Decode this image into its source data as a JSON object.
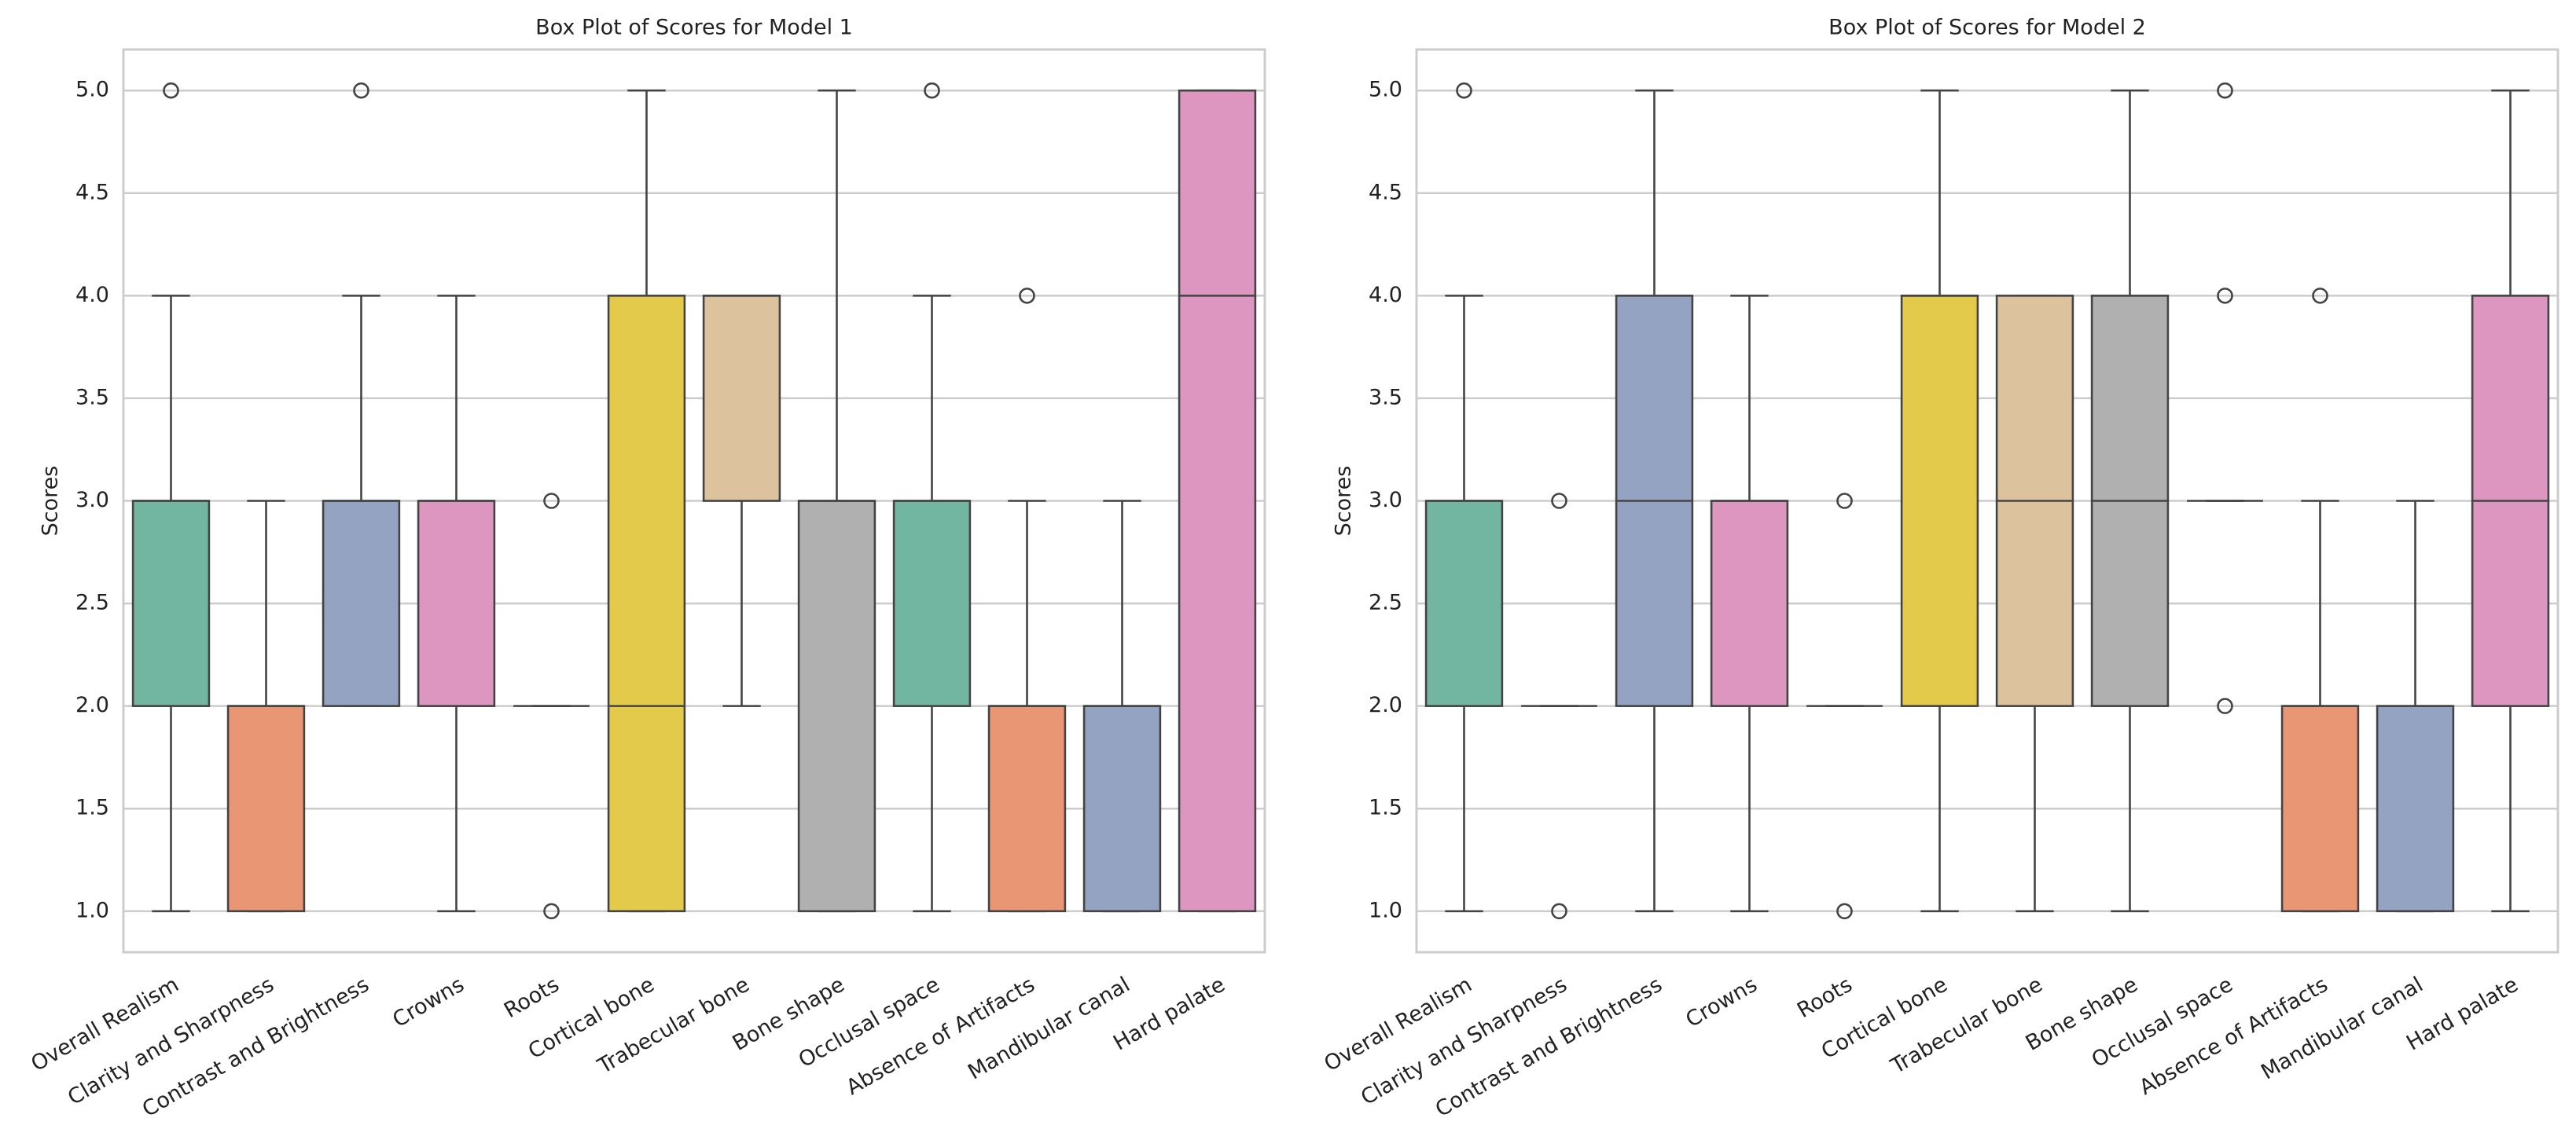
{
  "chart_data": [
    {
      "type": "box",
      "title": "Box Plot of Scores for Model 1",
      "y_label": "Scores",
      "categories": [
        "Overall Realism",
        "Clarity and Sharpness",
        "Contrast and Brightness",
        "Crowns",
        "Roots",
        "Cortical bone",
        "Trabecular bone",
        "Bone shape",
        "Occlusal space",
        "Absence of Artifacts",
        "Mandibular canal",
        "Hard palate"
      ],
      "colors": [
        "#72b6a1",
        "#e99675",
        "#95a3c3",
        "#dc96c0",
        "#a8cd6c",
        "#e3ca4b",
        "#dcc29d",
        "#b0b0b0",
        "#72b6a1",
        "#e99675",
        "#95a3c3",
        "#dc96c0"
      ],
      "boxes": [
        {
          "whisker_low": 1,
          "q1": 2,
          "median": 3,
          "q3": 3,
          "whisker_high": 4,
          "outliers": [
            5
          ]
        },
        {
          "whisker_low": 1,
          "q1": 1,
          "median": 2,
          "q3": 2,
          "whisker_high": 3,
          "outliers": []
        },
        {
          "whisker_low": 2,
          "q1": 2,
          "median": 3,
          "q3": 3,
          "whisker_high": 4,
          "outliers": [
            5
          ]
        },
        {
          "whisker_low": 1,
          "q1": 2,
          "median": 3,
          "q3": 3,
          "whisker_high": 4,
          "outliers": []
        },
        {
          "whisker_low": 2,
          "q1": 2,
          "median": 2,
          "q3": 2,
          "whisker_high": 2,
          "outliers": [
            1,
            3
          ]
        },
        {
          "whisker_low": 1,
          "q1": 1,
          "median": 2,
          "q3": 4,
          "whisker_high": 5,
          "outliers": []
        },
        {
          "whisker_low": 2,
          "q1": 3,
          "median": 4,
          "q3": 4,
          "whisker_high": 4,
          "outliers": []
        },
        {
          "whisker_low": 1,
          "q1": 1,
          "median": 3,
          "q3": 3,
          "whisker_high": 5,
          "outliers": []
        },
        {
          "whisker_low": 1,
          "q1": 2,
          "median": 3,
          "q3": 3,
          "whisker_high": 4,
          "outliers": [
            5
          ]
        },
        {
          "whisker_low": 1,
          "q1": 1,
          "median": 2,
          "q3": 2,
          "whisker_high": 3,
          "outliers": [
            4
          ]
        },
        {
          "whisker_low": 1,
          "q1": 1,
          "median": 2,
          "q3": 2,
          "whisker_high": 3,
          "outliers": []
        },
        {
          "whisker_low": 1,
          "q1": 1,
          "median": 4,
          "q3": 5,
          "whisker_high": 5,
          "outliers": []
        }
      ],
      "ylim": [
        0.8,
        5.2
      ],
      "yticks": [
        {
          "value": 1,
          "label": "1.0"
        },
        {
          "value": 1.5,
          "label": "1.5"
        },
        {
          "value": 2,
          "label": "2.0"
        },
        {
          "value": 2.5,
          "label": "2.5"
        },
        {
          "value": 3,
          "label": "3.0"
        },
        {
          "value": 3.5,
          "label": "3.5"
        },
        {
          "value": 4,
          "label": "4.0"
        },
        {
          "value": 4.5,
          "label": "4.5"
        },
        {
          "value": 5,
          "label": "5.0"
        }
      ],
      "grid": true
    },
    {
      "type": "box",
      "title": "Box Plot of Scores for Model 2",
      "y_label": "Scores",
      "categories": [
        "Overall Realism",
        "Clarity and Sharpness",
        "Contrast and Brightness",
        "Crowns",
        "Roots",
        "Cortical bone",
        "Trabecular bone",
        "Bone shape",
        "Occlusal space",
        "Absence of Artifacts",
        "Mandibular canal",
        "Hard palate"
      ],
      "colors": [
        "#72b6a1",
        "#e99675",
        "#95a3c3",
        "#dc96c0",
        "#a8cd6c",
        "#e3ca4b",
        "#dcc29d",
        "#b0b0b0",
        "#72b6a1",
        "#e99675",
        "#95a3c3",
        "#dc96c0"
      ],
      "boxes": [
        {
          "whisker_low": 1,
          "q1": 2,
          "median": 3,
          "q3": 3,
          "whisker_high": 4,
          "outliers": [
            5
          ]
        },
        {
          "whisker_low": 2,
          "q1": 2,
          "median": 2,
          "q3": 2,
          "whisker_high": 2,
          "outliers": [
            1,
            3
          ]
        },
        {
          "whisker_low": 1,
          "q1": 2,
          "median": 3,
          "q3": 4,
          "whisker_high": 5,
          "outliers": []
        },
        {
          "whisker_low": 1,
          "q1": 2,
          "median": 3,
          "q3": 3,
          "whisker_high": 4,
          "outliers": []
        },
        {
          "whisker_low": 2,
          "q1": 2,
          "median": 2,
          "q3": 2,
          "whisker_high": 2,
          "outliers": [
            1,
            3
          ]
        },
        {
          "whisker_low": 1,
          "q1": 2,
          "median": 4,
          "q3": 4,
          "whisker_high": 5,
          "outliers": []
        },
        {
          "whisker_low": 1,
          "q1": 2,
          "median": 3,
          "q3": 4,
          "whisker_high": 4,
          "outliers": []
        },
        {
          "whisker_low": 1,
          "q1": 2,
          "median": 3,
          "q3": 4,
          "whisker_high": 5,
          "outliers": []
        },
        {
          "whisker_low": 3,
          "q1": 3,
          "median": 3,
          "q3": 3,
          "whisker_high": 3,
          "outliers": [
            2,
            4,
            5
          ]
        },
        {
          "whisker_low": 1,
          "q1": 1,
          "median": 2,
          "q3": 2,
          "whisker_high": 3,
          "outliers": [
            4
          ]
        },
        {
          "whisker_low": 1,
          "q1": 1,
          "median": 2,
          "q3": 2,
          "whisker_high": 3,
          "outliers": []
        },
        {
          "whisker_low": 1,
          "q1": 2,
          "median": 3,
          "q3": 4,
          "whisker_high": 5,
          "outliers": []
        }
      ],
      "ylim": [
        0.8,
        5.2
      ],
      "yticks": [
        {
          "value": 1,
          "label": "1.0"
        },
        {
          "value": 1.5,
          "label": "1.5"
        },
        {
          "value": 2,
          "label": "2.0"
        },
        {
          "value": 2.5,
          "label": "2.5"
        },
        {
          "value": 3,
          "label": "3.0"
        },
        {
          "value": 3.5,
          "label": "3.5"
        },
        {
          "value": 4,
          "label": "4.0"
        },
        {
          "value": 4.5,
          "label": "4.5"
        },
        {
          "value": 5,
          "label": "5.0"
        }
      ],
      "grid": true
    }
  ]
}
